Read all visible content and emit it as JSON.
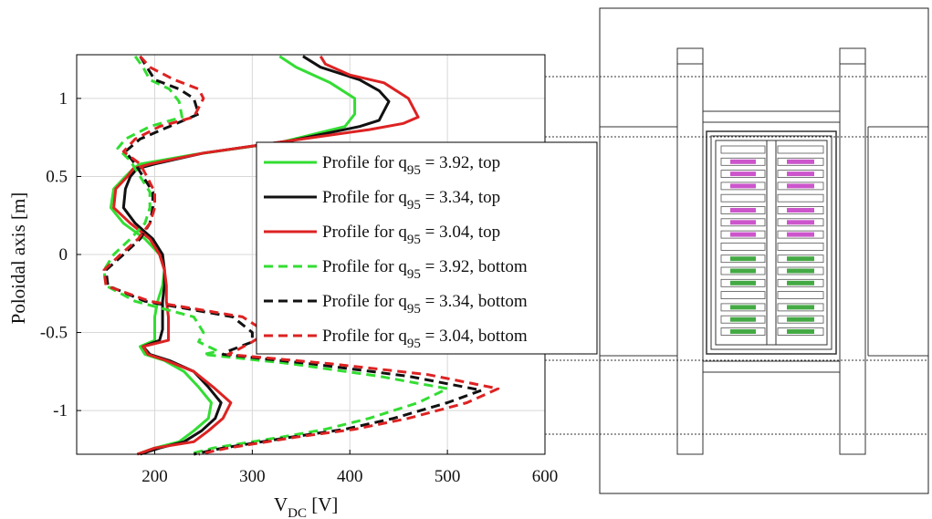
{
  "chart_data": {
    "type": "line",
    "xlabel": "V",
    "xlabel_sub": "DC",
    "xlabel_unit": " [V]",
    "ylabel": "Poloidal axis [m]",
    "xlim": [
      120,
      600
    ],
    "ylim": [
      -1.28,
      1.28
    ],
    "xticks": [
      200,
      300,
      400,
      500,
      600
    ],
    "yticks": [
      1,
      0.5,
      0,
      -0.5,
      -1
    ],
    "ytick_labels": [
      "1",
      "0.5",
      "0",
      "-0.5",
      "-1"
    ],
    "grid": true,
    "legend_position": "center-right",
    "series": [
      {
        "legend_prefix": "Profile for q",
        "legend_sub": "95",
        "legend_suffix": " = 3.92, top",
        "color": "#33dd33",
        "dash": "solid",
        "points": [
          [
            328,
            1.27
          ],
          [
            345,
            1.2
          ],
          [
            380,
            1.1
          ],
          [
            405,
            1.0
          ],
          [
            405,
            0.9
          ],
          [
            395,
            0.82
          ],
          [
            330,
            0.72
          ],
          [
            240,
            0.64
          ],
          [
            185,
            0.58
          ],
          [
            178,
            0.55
          ],
          [
            170,
            0.5
          ],
          [
            158,
            0.42
          ],
          [
            155,
            0.3
          ],
          [
            168,
            0.2
          ],
          [
            190,
            0.1
          ],
          [
            205,
            0.0
          ],
          [
            210,
            -0.1
          ],
          [
            208,
            -0.2
          ],
          [
            203,
            -0.3
          ],
          [
            200,
            -0.4
          ],
          [
            200,
            -0.48
          ],
          [
            200,
            -0.55
          ],
          [
            185,
            -0.59
          ],
          [
            190,
            -0.64
          ],
          [
            210,
            -0.68
          ],
          [
            230,
            -0.75
          ],
          [
            245,
            -0.85
          ],
          [
            258,
            -0.95
          ],
          [
            255,
            -1.05
          ],
          [
            240,
            -1.13
          ],
          [
            225,
            -1.2
          ],
          [
            200,
            -1.24
          ],
          [
            182,
            -1.28
          ]
        ]
      },
      {
        "legend_prefix": "Profile for q",
        "legend_sub": "95",
        "legend_suffix": " = 3.34, top",
        "color": "#111111",
        "dash": "solid",
        "points": [
          [
            352,
            1.27
          ],
          [
            370,
            1.2
          ],
          [
            410,
            1.12
          ],
          [
            430,
            1.05
          ],
          [
            440,
            0.98
          ],
          [
            430,
            0.86
          ],
          [
            410,
            0.82
          ],
          [
            340,
            0.73
          ],
          [
            250,
            0.65
          ],
          [
            200,
            0.58
          ],
          [
            182,
            0.55
          ],
          [
            175,
            0.5
          ],
          [
            170,
            0.42
          ],
          [
            168,
            0.3
          ],
          [
            180,
            0.2
          ],
          [
            198,
            0.1
          ],
          [
            208,
            0.0
          ],
          [
            210,
            -0.1
          ],
          [
            210,
            -0.2
          ],
          [
            208,
            -0.3
          ],
          [
            208,
            -0.4
          ],
          [
            208,
            -0.48
          ],
          [
            205,
            -0.55
          ],
          [
            188,
            -0.59
          ],
          [
            195,
            -0.64
          ],
          [
            215,
            -0.68
          ],
          [
            240,
            -0.75
          ],
          [
            255,
            -0.85
          ],
          [
            268,
            -0.95
          ],
          [
            262,
            -1.05
          ],
          [
            248,
            -1.13
          ],
          [
            230,
            -1.2
          ],
          [
            205,
            -1.24
          ],
          [
            185,
            -1.28
          ]
        ]
      },
      {
        "legend_prefix": "Profile for q",
        "legend_sub": "95",
        "legend_suffix": " = 3.04, top",
        "color": "#dd2222",
        "dash": "solid",
        "points": [
          [
            370,
            1.27
          ],
          [
            375,
            1.22
          ],
          [
            400,
            1.15
          ],
          [
            435,
            1.1
          ],
          [
            460,
            1.0
          ],
          [
            470,
            0.88
          ],
          [
            455,
            0.84
          ],
          [
            420,
            0.8
          ],
          [
            340,
            0.73
          ],
          [
            250,
            0.65
          ],
          [
            195,
            0.58
          ],
          [
            178,
            0.55
          ],
          [
            172,
            0.5
          ],
          [
            160,
            0.42
          ],
          [
            158,
            0.3
          ],
          [
            175,
            0.2
          ],
          [
            195,
            0.1
          ],
          [
            205,
            0.0
          ],
          [
            210,
            -0.1
          ],
          [
            212,
            -0.2
          ],
          [
            212,
            -0.3
          ],
          [
            214,
            -0.4
          ],
          [
            214,
            -0.48
          ],
          [
            214,
            -0.55
          ],
          [
            188,
            -0.59
          ],
          [
            193,
            -0.64
          ],
          [
            212,
            -0.68
          ],
          [
            240,
            -0.75
          ],
          [
            260,
            -0.85
          ],
          [
            278,
            -0.95
          ],
          [
            270,
            -1.05
          ],
          [
            255,
            -1.13
          ],
          [
            240,
            -1.2
          ],
          [
            200,
            -1.24
          ],
          [
            182,
            -1.28
          ]
        ]
      },
      {
        "legend_prefix": "Profile for q",
        "legend_sub": "95",
        "legend_suffix": " = 3.92, bottom",
        "color": "#33dd33",
        "dash": "dashed",
        "points": [
          [
            180,
            1.27
          ],
          [
            188,
            1.2
          ],
          [
            195,
            1.12
          ],
          [
            215,
            1.06
          ],
          [
            225,
            0.98
          ],
          [
            228,
            0.88
          ],
          [
            195,
            0.82
          ],
          [
            170,
            0.74
          ],
          [
            162,
            0.68
          ],
          [
            175,
            0.6
          ],
          [
            185,
            0.5
          ],
          [
            195,
            0.4
          ],
          [
            195,
            0.3
          ],
          [
            190,
            0.2
          ],
          [
            175,
            0.1
          ],
          [
            158,
            0.0
          ],
          [
            148,
            -0.1
          ],
          [
            150,
            -0.2
          ],
          [
            180,
            -0.3
          ],
          [
            240,
            -0.4
          ],
          [
            250,
            -0.5
          ],
          [
            245,
            -0.56
          ],
          [
            265,
            -0.62
          ],
          [
            250,
            -0.64
          ],
          [
            340,
            -0.7
          ],
          [
            430,
            -0.78
          ],
          [
            500,
            -0.86
          ],
          [
            470,
            -0.95
          ],
          [
            420,
            -1.05
          ],
          [
            375,
            -1.12
          ],
          [
            330,
            -1.17
          ],
          [
            260,
            -1.24
          ],
          [
            235,
            -1.28
          ]
        ]
      },
      {
        "legend_prefix": "Profile for q",
        "legend_sub": "95",
        "legend_suffix": " = 3.34, bottom",
        "color": "#111111",
        "dash": "dashed",
        "points": [
          [
            185,
            1.27
          ],
          [
            190,
            1.22
          ],
          [
            200,
            1.12
          ],
          [
            225,
            1.06
          ],
          [
            240,
            1.0
          ],
          [
            245,
            0.9
          ],
          [
            215,
            0.82
          ],
          [
            185,
            0.74
          ],
          [
            170,
            0.66
          ],
          [
            180,
            0.58
          ],
          [
            188,
            0.5
          ],
          [
            198,
            0.4
          ],
          [
            198,
            0.3
          ],
          [
            195,
            0.2
          ],
          [
            185,
            0.1
          ],
          [
            168,
            0.0
          ],
          [
            150,
            -0.1
          ],
          [
            152,
            -0.2
          ],
          [
            190,
            -0.3
          ],
          [
            280,
            -0.4
          ],
          [
            300,
            -0.5
          ],
          [
            300,
            -0.56
          ],
          [
            275,
            -0.62
          ],
          [
            270,
            -0.64
          ],
          [
            360,
            -0.7
          ],
          [
            460,
            -0.78
          ],
          [
            535,
            -0.87
          ],
          [
            500,
            -0.95
          ],
          [
            445,
            -1.05
          ],
          [
            395,
            -1.12
          ],
          [
            340,
            -1.17
          ],
          [
            270,
            -1.24
          ],
          [
            240,
            -1.28
          ]
        ]
      },
      {
        "legend_prefix": "Profile for q",
        "legend_sub": "95",
        "legend_suffix": " = 3.04, bottom",
        "color": "#dd2222",
        "dash": "dashed",
        "points": [
          [
            185,
            1.27
          ],
          [
            195,
            1.2
          ],
          [
            220,
            1.12
          ],
          [
            245,
            1.06
          ],
          [
            250,
            1.0
          ],
          [
            240,
            0.88
          ],
          [
            205,
            0.82
          ],
          [
            180,
            0.74
          ],
          [
            168,
            0.66
          ],
          [
            185,
            0.58
          ],
          [
            192,
            0.5
          ],
          [
            200,
            0.4
          ],
          [
            200,
            0.3
          ],
          [
            195,
            0.2
          ],
          [
            183,
            0.1
          ],
          [
            165,
            0.0
          ],
          [
            148,
            -0.1
          ],
          [
            150,
            -0.2
          ],
          [
            195,
            -0.3
          ],
          [
            290,
            -0.4
          ],
          [
            315,
            -0.5
          ],
          [
            300,
            -0.56
          ],
          [
            282,
            -0.62
          ],
          [
            275,
            -0.64
          ],
          [
            380,
            -0.7
          ],
          [
            480,
            -0.77
          ],
          [
            552,
            -0.86
          ],
          [
            520,
            -0.95
          ],
          [
            460,
            -1.05
          ],
          [
            405,
            -1.12
          ],
          [
            345,
            -1.17
          ],
          [
            275,
            -1.24
          ],
          [
            245,
            -1.28
          ]
        ]
      }
    ]
  },
  "diagram": {
    "top_colors": "#cc55cc",
    "bottom_colors": "#44aa44"
  }
}
